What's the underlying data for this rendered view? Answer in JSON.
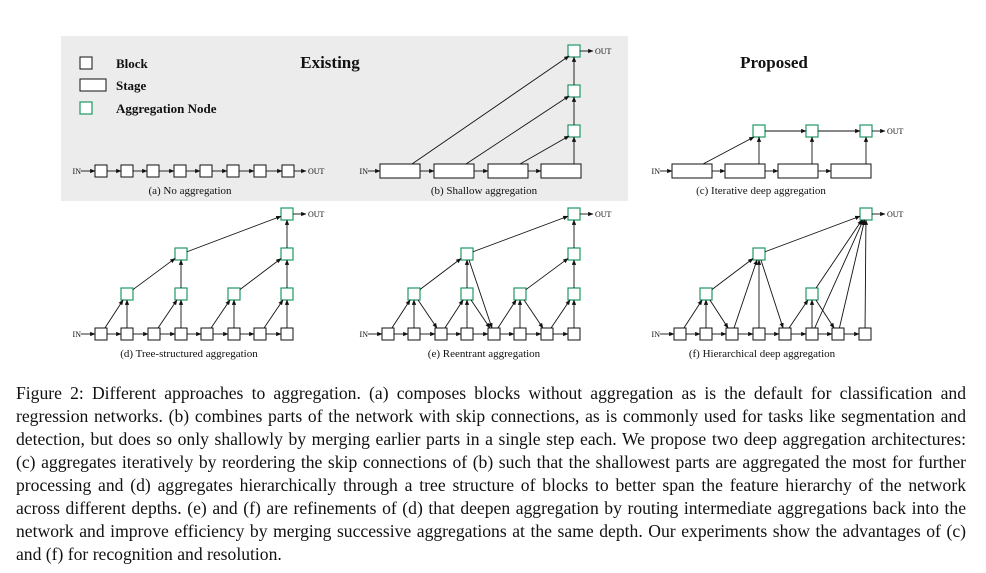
{
  "figure": {
    "header_existing": "Existing",
    "header_proposed": "Proposed",
    "legend": [
      {
        "kind": "block",
        "label": "Block"
      },
      {
        "kind": "stage",
        "label": "Stage"
      },
      {
        "kind": "agg",
        "label": "Aggregation Node"
      }
    ],
    "in_label": "IN",
    "out_label": "OUT",
    "colors": {
      "aggregation": "#1e9a63",
      "existing_panel": "#ececec",
      "edge": "#111111"
    },
    "panels": [
      {
        "id": "a",
        "caption": "(a) No aggregation"
      },
      {
        "id": "b",
        "caption": "(b) Shallow aggregation"
      },
      {
        "id": "c",
        "caption": "(c) Iterative deep aggregation"
      },
      {
        "id": "d",
        "caption": "(d) Tree-structured aggregation"
      },
      {
        "id": "e",
        "caption": "(e) Reentrant aggregation"
      },
      {
        "id": "f",
        "caption": "(f) Hierarchical deep aggregation"
      }
    ]
  },
  "caption": "Figure 2: Different approaches to aggregation. (a) composes blocks without aggregation as is the default for classification and regression networks. (b) combines parts of the network with skip connections, as is commonly used for tasks like segmentation and detection, but does so only shallowly by merging earlier parts in a single step each. We propose two deep aggregation architectures: (c) aggregates iteratively by reordering the skip connections of (b) such that the shallowest parts are aggregated the most for further processing and (d) aggregates hierarchically through a tree structure of blocks to better span the feature hierarchy of the network across different depths. (e) and (f) are refinements of (d) that deepen aggregation by routing intermediate aggregations back into the network and improve efficiency by merging successive aggregations at the same depth. Our experiments show the advantages of (c) and (f) for recognition and resolution."
}
